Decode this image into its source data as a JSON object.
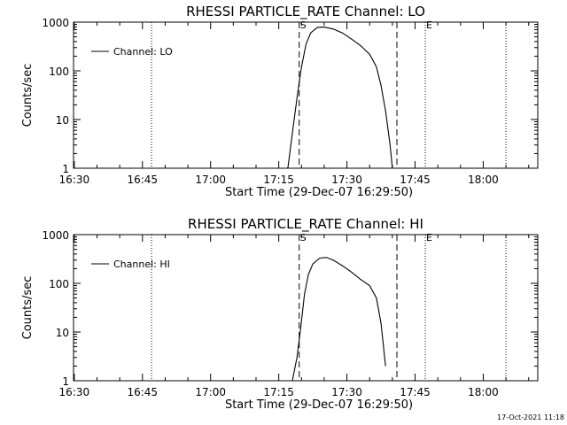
{
  "chart_data": [
    {
      "type": "line",
      "title": "RHESSI PARTICLE_RATE Channel: LO",
      "xlabel": "Start Time (29-Dec-07 16:29:50)",
      "ylabel": "Counts/sec",
      "y_scale": "log",
      "ylim": [
        1,
        1000
      ],
      "x_range": [
        "16:29:50",
        "18:12"
      ],
      "x_ticks": [
        "16:30",
        "16:45",
        "17:00",
        "17:15",
        "17:30",
        "17:45",
        "18:00"
      ],
      "y_ticks": [
        "1",
        "10",
        "100",
        "1000"
      ],
      "legend": "top-left",
      "grid": false,
      "series": [
        {
          "name": "Channel: LO",
          "points": [
            [
              "17:17:00",
              1
            ],
            [
              "17:17:40",
              3
            ],
            [
              "17:18:30",
              12
            ],
            [
              "17:19:10",
              35
            ],
            [
              "17:20:00",
              120
            ],
            [
              "17:21:00",
              350
            ],
            [
              "17:22:00",
              600
            ],
            [
              "17:23:30",
              780
            ],
            [
              "17:25:00",
              790
            ],
            [
              "17:27:00",
              720
            ],
            [
              "17:29:00",
              600
            ],
            [
              "17:31:00",
              450
            ],
            [
              "17:33:00",
              330
            ],
            [
              "17:35:00",
              220
            ],
            [
              "17:36:30",
              120
            ],
            [
              "17:37:30",
              50
            ],
            [
              "17:38:30",
              15
            ],
            [
              "17:39:30",
              3
            ],
            [
              "17:40:00",
              1
            ]
          ]
        }
      ],
      "vertical_markers": [
        {
          "label": "S",
          "time": "17:19:30",
          "style": "dashed"
        },
        {
          "label": "",
          "time": "17:41:00",
          "style": "dashed"
        },
        {
          "label": "E",
          "time": "17:47:15",
          "style": "dotted"
        },
        {
          "label": "",
          "time": "16:47:00",
          "style": "dotted"
        },
        {
          "label": "",
          "time": "18:05:00",
          "style": "dotted"
        }
      ]
    },
    {
      "type": "line",
      "title": "RHESSI PARTICLE_RATE Channel: HI",
      "xlabel": "Start Time (29-Dec-07 16:29:50)",
      "ylabel": "Counts/sec",
      "y_scale": "log",
      "ylim": [
        1,
        1000
      ],
      "x_range": [
        "16:29:50",
        "18:12"
      ],
      "x_ticks": [
        "16:30",
        "16:45",
        "17:00",
        "17:15",
        "17:30",
        "17:45",
        "18:00"
      ],
      "y_ticks": [
        "1",
        "10",
        "100",
        "1000"
      ],
      "legend": "top-left",
      "grid": false,
      "series": [
        {
          "name": "Channel: HI",
          "points": [
            [
              "17:18:00",
              1
            ],
            [
              "17:19:00",
              3
            ],
            [
              "17:19:50",
              12
            ],
            [
              "17:20:40",
              60
            ],
            [
              "17:21:30",
              150
            ],
            [
              "17:22:30",
              250
            ],
            [
              "17:24:00",
              330
            ],
            [
              "17:25:30",
              340
            ],
            [
              "17:27:00",
              300
            ],
            [
              "17:29:00",
              230
            ],
            [
              "17:31:00",
              170
            ],
            [
              "17:33:00",
              120
            ],
            [
              "17:35:00",
              90
            ],
            [
              "17:36:30",
              50
            ],
            [
              "17:37:30",
              15
            ],
            [
              "17:38:30",
              2
            ]
          ]
        }
      ],
      "vertical_markers": [
        {
          "label": "S",
          "time": "17:19:30",
          "style": "dashed"
        },
        {
          "label": "",
          "time": "17:41:00",
          "style": "dashed"
        },
        {
          "label": "E",
          "time": "17:47:15",
          "style": "dotted"
        },
        {
          "label": "",
          "time": "16:47:00",
          "style": "dotted"
        },
        {
          "label": "",
          "time": "18:05:00",
          "style": "dotted"
        }
      ]
    }
  ],
  "footer": {
    "timestamp": "17-Oct-2021 11:18"
  }
}
